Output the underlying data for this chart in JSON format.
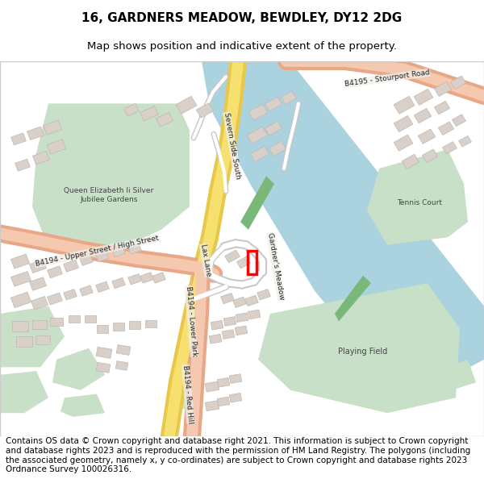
{
  "title_line1": "16, GARDNERS MEADOW, BEWDLEY, DY12 2DG",
  "title_line2": "Map shows position and indicative extent of the property.",
  "footer_text": "Contains OS data © Crown copyright and database right 2021. This information is subject to Crown copyright and database rights 2023 and is reproduced with the permission of HM Land Registry. The polygons (including the associated geometry, namely x, y co-ordinates) are subject to Crown copyright and database rights 2023 Ordnance Survey 100026316.",
  "map_bg": "#f2efe9",
  "water_color": "#aad3df",
  "green_park": "#c8dfc8",
  "green_dark": "#7ab87a",
  "green_tennis": "#c8dfc8",
  "road_yellow_outer": "#e8c84a",
  "road_yellow_inner": "#f5e070",
  "road_pink_outer": "#e8a888",
  "road_pink_inner": "#f5c8b0",
  "road_white": "#ffffff",
  "road_lgray": "#e8e8e8",
  "building_fill": "#d9d0c9",
  "building_edge": "#c0b8b0",
  "property_color": "#ff0000",
  "border_color": "#cccccc",
  "water_edge_green": "#5a9a5a",
  "title_fontsize": 11,
  "subtitle_fontsize": 9.5,
  "footer_fontsize": 7.5,
  "map_label_fontsize": 6.5
}
